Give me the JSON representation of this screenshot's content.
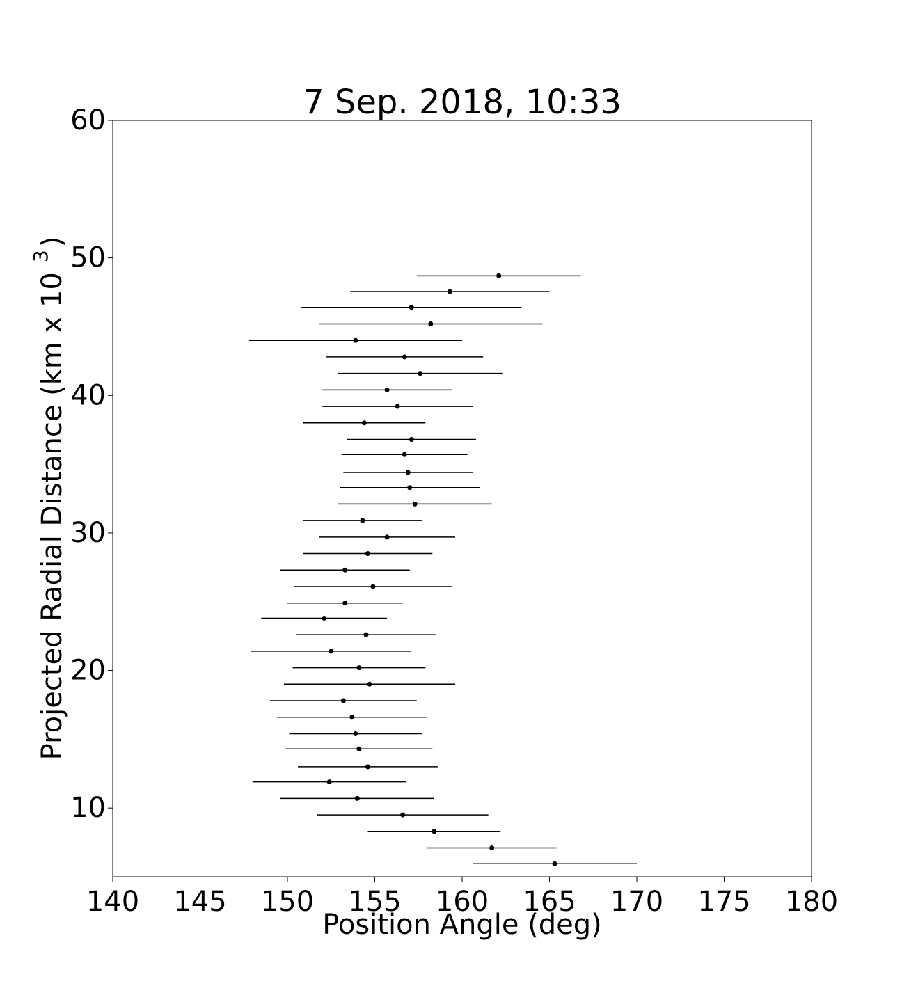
{
  "chart_data": {
    "type": "errorbar-scatter",
    "title": "7 Sep. 2018, 10:33",
    "xlabel": "Position Angle (deg)",
    "ylabel": [
      "Projected Radial Distance (km x 10",
      "3",
      ")"
    ],
    "color": "#000000",
    "xlim": [
      140,
      180
    ],
    "xticks": [
      140,
      145,
      150,
      155,
      160,
      165,
      170,
      175,
      180
    ],
    "ylim": [
      5,
      60
    ],
    "yticks": [
      10,
      20,
      30,
      40,
      50,
      60
    ],
    "grid": false,
    "series": [
      {
        "x": [
          162.1,
          159.3,
          157.1,
          158.2,
          153.9,
          156.7,
          157.6,
          155.7,
          156.3,
          154.4,
          157.1,
          156.7,
          156.9,
          157.0,
          157.3,
          154.3,
          155.7,
          154.6,
          153.3,
          154.9,
          153.3,
          152.1,
          154.5,
          152.5,
          154.1,
          154.7,
          153.2,
          153.7,
          153.9,
          154.1,
          154.6,
          152.4,
          154.0,
          156.6,
          158.4,
          161.7,
          165.3
        ],
        "values": [
          48.7,
          47.55,
          46.4,
          45.2,
          44.0,
          42.8,
          41.6,
          40.4,
          39.2,
          38.0,
          36.8,
          35.7,
          34.4,
          33.3,
          32.1,
          30.9,
          29.7,
          28.5,
          27.3,
          26.1,
          24.9,
          23.8,
          22.6,
          21.4,
          20.2,
          19.0,
          17.8,
          16.6,
          15.4,
          14.3,
          13.0,
          11.9,
          10.7,
          9.5,
          8.3,
          7.1,
          5.95
        ],
        "xerr": [
          4.7,
          5.7,
          6.3,
          6.4,
          6.1,
          4.5,
          4.7,
          3.7,
          4.3,
          3.5,
          3.7,
          3.6,
          3.7,
          4.0,
          4.4,
          3.4,
          3.9,
          3.7,
          3.7,
          4.5,
          3.3,
          3.6,
          4.0,
          4.6,
          3.8,
          4.9,
          4.2,
          4.3,
          3.8,
          4.2,
          4.0,
          4.4,
          4.4,
          4.9,
          3.8,
          3.7,
          4.7
        ]
      }
    ]
  }
}
